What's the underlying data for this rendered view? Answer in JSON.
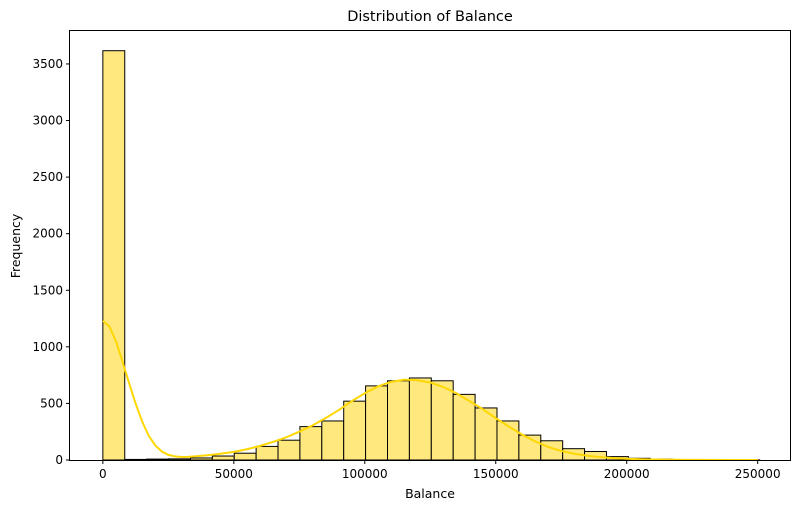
{
  "chart_data": {
    "type": "bar",
    "title": "Distribution of Balance",
    "xlabel": "Balance",
    "ylabel": "Frequency",
    "xlim": [
      -12540,
      262340
    ],
    "ylim": [
      0,
      3800
    ],
    "xticks": [
      0,
      50000,
      100000,
      150000,
      200000,
      250000
    ],
    "yticks": [
      0,
      500,
      1000,
      1500,
      2000,
      2500,
      3000,
      3500
    ],
    "bins": {
      "start": 0,
      "width": 8359.6,
      "counts": [
        3617,
        5,
        8,
        10,
        18,
        35,
        60,
        120,
        175,
        295,
        345,
        520,
        655,
        700,
        725,
        700,
        580,
        460,
        345,
        220,
        170,
        100,
        75,
        30,
        15,
        8,
        3,
        2,
        1,
        1
      ]
    },
    "kde": {
      "x": [
        0,
        2500,
        5000,
        7500,
        10000,
        12500,
        15000,
        17500,
        20000,
        22500,
        25000,
        27500,
        30000,
        32500,
        35000,
        40000,
        45000,
        50000,
        55000,
        60000,
        65000,
        70000,
        75000,
        80000,
        85000,
        90000,
        95000,
        100000,
        105000,
        110000,
        115000,
        120000,
        125000,
        130000,
        135000,
        140000,
        145000,
        150000,
        155000,
        160000,
        165000,
        170000,
        175000,
        180000,
        185000,
        190000,
        195000,
        200000,
        205000,
        210000,
        215000,
        220000,
        230000,
        240000,
        250000
      ],
      "y": [
        1230,
        1180,
        1050,
        870,
        680,
        500,
        340,
        215,
        130,
        75,
        45,
        32,
        27,
        28,
        32,
        42,
        55,
        72,
        95,
        125,
        160,
        200,
        250,
        305,
        370,
        440,
        520,
        590,
        650,
        690,
        710,
        705,
        685,
        645,
        590,
        520,
        450,
        370,
        295,
        225,
        165,
        115,
        80,
        55,
        38,
        26,
        17,
        11,
        7,
        4,
        3,
        2,
        1,
        0.5,
        0.3
      ]
    },
    "colors": {
      "bar_fill": "#ffe97f",
      "bar_edge": "#000000",
      "kde_line": "#ffd700"
    },
    "grid": false,
    "legend": "none"
  }
}
